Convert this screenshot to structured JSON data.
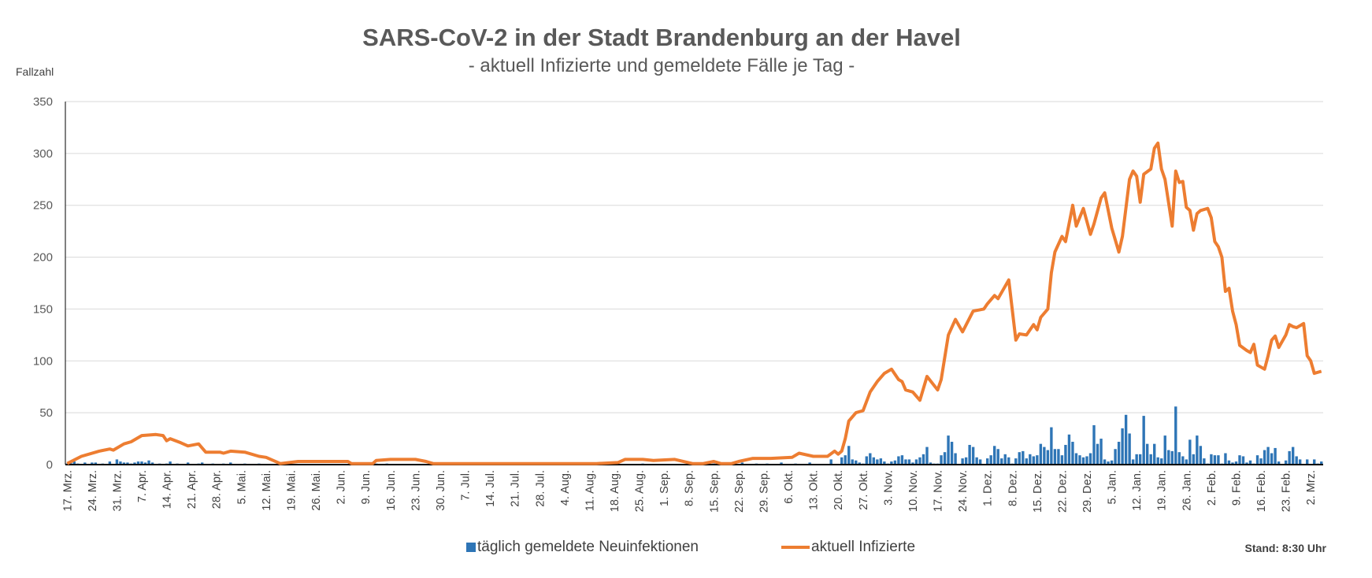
{
  "chart_data": {
    "type": "bar+line",
    "title": "SARS-CoV-2 in der Stadt Brandenburg an der Havel",
    "subtitle": "- aktuell Infizierte und gemeldete Fälle je Tag -",
    "ylabel": "Fallzahl",
    "xlabel": "",
    "ylim": [
      0,
      350
    ],
    "yticks": [
      0,
      50,
      100,
      150,
      200,
      250,
      300,
      350
    ],
    "grid": true,
    "x_unit": "days since 17. Mrz.",
    "xlim": [
      0,
      353
    ],
    "xtick_days_step": 7,
    "xtick_labels": [
      "17. Mrz.",
      "24. Mrz.",
      "31. Mrz.",
      "7. Apr.",
      "14. Apr.",
      "21. Apr.",
      "28. Apr.",
      "5. Mai.",
      "12. Mai.",
      "19. Mai.",
      "26. Mai.",
      "2. Jun.",
      "9. Jun.",
      "16. Jun.",
      "23. Jun.",
      "30. Jun.",
      "7. Jul.",
      "14. Jul.",
      "21. Jul.",
      "28. Jul.",
      "4. Aug.",
      "11. Aug.",
      "18. Aug.",
      "25. Aug.",
      "1. Sep.",
      "8. Sep.",
      "15. Sep.",
      "22. Sep.",
      "29. Sep.",
      "6. Okt.",
      "13. Okt.",
      "20. Okt.",
      "27. Okt.",
      "3. Nov.",
      "10. Nov.",
      "17. Nov.",
      "24. Nov.",
      "1. Dez.",
      "8. Dez.",
      "15. Dez.",
      "22. Dez.",
      "29. Dez.",
      "5. Jan.",
      "12. Jan.",
      "19. Jan.",
      "26. Jan.",
      "2. Feb.",
      "9. Feb.",
      "16. Feb.",
      "23. Feb.",
      "2. Mrz."
    ],
    "legend_position": "bottom",
    "series": [
      {
        "name": "täglich gemeldete Neuinfektionen",
        "type": "bar",
        "color": "#2e75b6",
        "values": [
          1,
          2,
          3,
          1,
          0,
          2,
          0,
          2,
          2,
          0,
          1,
          0,
          3,
          0,
          5,
          3,
          2,
          2,
          1,
          2,
          3,
          3,
          2,
          4,
          2,
          0,
          1,
          0,
          1,
          3,
          0,
          1,
          0,
          0,
          2,
          0,
          0,
          1,
          2,
          0,
          0,
          1,
          0,
          0,
          1,
          0,
          2,
          0,
          0,
          0,
          1,
          0,
          0,
          0,
          1,
          0,
          0,
          0,
          0,
          0,
          0,
          0,
          0,
          0,
          0,
          0,
          0,
          0,
          0,
          0,
          0,
          0,
          0,
          0,
          0,
          0,
          0,
          0,
          0,
          0,
          0,
          0,
          0,
          0,
          0,
          0,
          0,
          1,
          0,
          0,
          1,
          0,
          0,
          0,
          0,
          0,
          0,
          0,
          0,
          0,
          0,
          0,
          0,
          0,
          0,
          0,
          0,
          0,
          0,
          0,
          0,
          0,
          0,
          0,
          0,
          0,
          0,
          0,
          0,
          0,
          0,
          0,
          0,
          0,
          0,
          0,
          0,
          0,
          0,
          0,
          0,
          0,
          0,
          0,
          0,
          0,
          0,
          0,
          0,
          0,
          0,
          0,
          0,
          0,
          0,
          0,
          0,
          0,
          0,
          0,
          0,
          0,
          0,
          1,
          0,
          1,
          0,
          0,
          0,
          0,
          0,
          0,
          1,
          0,
          0,
          0,
          0,
          0,
          0,
          0,
          0,
          0,
          0,
          0,
          0,
          0,
          0,
          0,
          0,
          1,
          0,
          0,
          1,
          0,
          0,
          0,
          0,
          0,
          1,
          0,
          2,
          0,
          0,
          0,
          1,
          0,
          0,
          1,
          0,
          0,
          0,
          2,
          0,
          0,
          0,
          1,
          0,
          0,
          0,
          2,
          0,
          0,
          0,
          0,
          0,
          5,
          0,
          0,
          7,
          9,
          18,
          5,
          4,
          2,
          1,
          8,
          11,
          7,
          5,
          6,
          3,
          1,
          3,
          4,
          8,
          9,
          5,
          5,
          2,
          5,
          7,
          10,
          17,
          2,
          1,
          1,
          9,
          12,
          28,
          22,
          11,
          0,
          6,
          7,
          19,
          17,
          7,
          5,
          0,
          6,
          9,
          18,
          15,
          6,
          10,
          7,
          1,
          6,
          12,
          13,
          6,
          10,
          8,
          9,
          20,
          17,
          14,
          36,
          15,
          15,
          9,
          19,
          29,
          22,
          11,
          9,
          7,
          8,
          11,
          38,
          20,
          25,
          5,
          3,
          4,
          15,
          22,
          35,
          48,
          30,
          5,
          10,
          10,
          47,
          20,
          10,
          20,
          7,
          6,
          28,
          14,
          13,
          56,
          12,
          8,
          5,
          24,
          10,
          28,
          18,
          6,
          1,
          10,
          9,
          9,
          1,
          11,
          4,
          2,
          3,
          9,
          8,
          2,
          4,
          1,
          9,
          6,
          14,
          17,
          11,
          16,
          3,
          0,
          4,
          13,
          17,
          8,
          5,
          0,
          5,
          0,
          5,
          1,
          3
        ]
      },
      {
        "name": "aktuell Infizierte",
        "type": "line",
        "color": "#ed7d31",
        "points": [
          [
            0,
            1
          ],
          [
            4,
            8
          ],
          [
            9,
            13
          ],
          [
            12,
            15
          ],
          [
            13,
            14
          ],
          [
            16,
            20
          ],
          [
            18,
            22
          ],
          [
            21,
            28
          ],
          [
            25,
            29
          ],
          [
            27,
            28
          ],
          [
            28,
            23
          ],
          [
            29,
            25
          ],
          [
            32,
            21
          ],
          [
            34,
            18
          ],
          [
            37,
            20
          ],
          [
            39,
            12
          ],
          [
            43,
            12
          ],
          [
            44,
            11
          ],
          [
            46,
            13
          ],
          [
            50,
            12
          ],
          [
            54,
            8
          ],
          [
            56,
            7
          ],
          [
            60,
            1
          ],
          [
            65,
            3
          ],
          [
            79,
            3
          ],
          [
            80,
            1
          ],
          [
            86,
            1
          ],
          [
            87,
            4
          ],
          [
            91,
            5
          ],
          [
            98,
            5
          ],
          [
            101,
            3
          ],
          [
            103,
            1
          ],
          [
            149,
            1
          ],
          [
            155,
            2
          ],
          [
            157,
            5
          ],
          [
            162,
            5
          ],
          [
            165,
            4
          ],
          [
            171,
            5
          ],
          [
            176,
            1
          ],
          [
            179,
            1
          ],
          [
            182,
            3
          ],
          [
            184,
            1
          ],
          [
            187,
            1
          ],
          [
            189,
            3
          ],
          [
            193,
            6
          ],
          [
            198,
            6
          ],
          [
            204,
            7
          ],
          [
            206,
            11
          ],
          [
            210,
            8
          ],
          [
            214,
            8
          ],
          [
            216,
            13
          ],
          [
            217,
            10
          ],
          [
            218,
            13
          ],
          [
            219,
            25
          ],
          [
            220,
            42
          ],
          [
            222,
            50
          ],
          [
            224,
            52
          ],
          [
            226,
            70
          ],
          [
            228,
            80
          ],
          [
            230,
            88
          ],
          [
            232,
            92
          ],
          [
            234,
            82
          ],
          [
            235,
            80
          ],
          [
            236,
            72
          ],
          [
            238,
            70
          ],
          [
            240,
            62
          ],
          [
            242,
            85
          ],
          [
            245,
            72
          ],
          [
            246,
            82
          ],
          [
            248,
            125
          ],
          [
            250,
            140
          ],
          [
            252,
            128
          ],
          [
            255,
            148
          ],
          [
            258,
            150
          ],
          [
            259,
            155
          ],
          [
            261,
            163
          ],
          [
            262,
            160
          ],
          [
            265,
            178
          ],
          [
            267,
            120
          ],
          [
            268,
            126
          ],
          [
            270,
            125
          ],
          [
            272,
            135
          ],
          [
            273,
            130
          ],
          [
            274,
            142
          ],
          [
            276,
            150
          ],
          [
            277,
            185
          ],
          [
            278,
            205
          ],
          [
            280,
            220
          ],
          [
            281,
            215
          ],
          [
            283,
            250
          ],
          [
            284,
            230
          ],
          [
            286,
            247
          ],
          [
            288,
            222
          ],
          [
            289,
            232
          ],
          [
            291,
            257
          ],
          [
            292,
            262
          ],
          [
            294,
            228
          ],
          [
            296,
            205
          ],
          [
            297,
            220
          ],
          [
            299,
            275
          ],
          [
            300,
            283
          ],
          [
            301,
            278
          ],
          [
            302,
            253
          ],
          [
            303,
            280
          ],
          [
            305,
            285
          ],
          [
            306,
            305
          ],
          [
            307,
            310
          ],
          [
            308,
            285
          ],
          [
            309,
            275
          ],
          [
            311,
            230
          ],
          [
            312,
            283
          ],
          [
            313,
            272
          ],
          [
            314,
            273
          ],
          [
            315,
            248
          ],
          [
            316,
            245
          ],
          [
            317,
            226
          ],
          [
            318,
            242
          ],
          [
            319,
            245
          ],
          [
            321,
            247
          ],
          [
            322,
            238
          ],
          [
            323,
            215
          ],
          [
            324,
            210
          ],
          [
            325,
            200
          ],
          [
            326,
            167
          ],
          [
            327,
            170
          ],
          [
            328,
            148
          ],
          [
            329,
            135
          ],
          [
            330,
            115
          ],
          [
            332,
            110
          ],
          [
            333,
            108
          ],
          [
            334,
            116
          ],
          [
            335,
            96
          ],
          [
            337,
            92
          ],
          [
            338,
            105
          ],
          [
            339,
            120
          ],
          [
            340,
            124
          ],
          [
            341,
            113
          ],
          [
            343,
            125
          ],
          [
            344,
            135
          ],
          [
            345,
            133
          ],
          [
            346,
            132
          ],
          [
            348,
            136
          ],
          [
            349,
            105
          ],
          [
            350,
            100
          ],
          [
            351,
            88
          ],
          [
            353,
            90
          ]
        ]
      }
    ],
    "footnote": "Stand: 8:30 Uhr"
  }
}
